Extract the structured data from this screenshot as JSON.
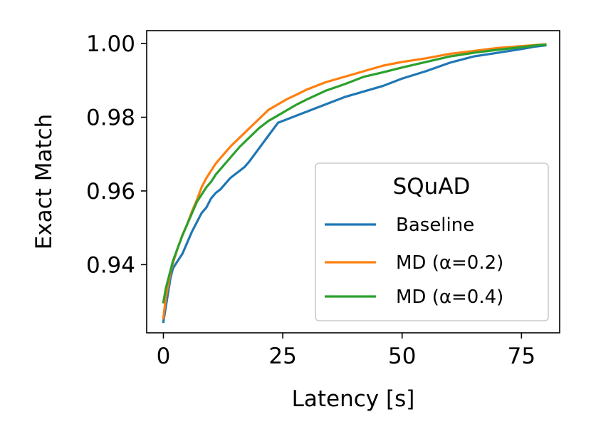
{
  "chart_data": {
    "type": "line",
    "xlabel": "Latency [s]",
    "ylabel": "Exact Match",
    "xlim": [
      -3.5,
      83
    ],
    "ylim": [
      0.9215,
      1.0035
    ],
    "xticks": [
      0,
      25,
      50,
      75
    ],
    "yticks": [
      0.94,
      0.96,
      0.98,
      1.0
    ],
    "xtick_labels": [
      "0",
      "25",
      "50",
      "75"
    ],
    "ytick_labels": [
      "0.94",
      "0.96",
      "0.98",
      "1.00"
    ],
    "grid": false,
    "legend": {
      "title": "SQuAD",
      "placement": "lower-right"
    },
    "series": [
      {
        "name": "Baseline",
        "color": "#1f77b4",
        "x": [
          0,
          0.5,
          1,
          1.5,
          2,
          3,
          4,
          5,
          6,
          7,
          8,
          9,
          10,
          11,
          12,
          13,
          14,
          15,
          16,
          17,
          18,
          20,
          22,
          24,
          26,
          28,
          30,
          34,
          38,
          42,
          46,
          50,
          55,
          60,
          65,
          70,
          75,
          78,
          80
        ],
        "y": [
          0.9245,
          0.9285,
          0.9325,
          0.9365,
          0.939,
          0.941,
          0.943,
          0.946,
          0.949,
          0.9515,
          0.954,
          0.9555,
          0.958,
          0.9595,
          0.9605,
          0.962,
          0.9635,
          0.9645,
          0.9655,
          0.9665,
          0.968,
          0.9715,
          0.975,
          0.9785,
          0.9795,
          0.9805,
          0.9815,
          0.9835,
          0.9855,
          0.987,
          0.9885,
          0.9905,
          0.9925,
          0.9948,
          0.9965,
          0.9975,
          0.9985,
          0.9992,
          0.9995
        ]
      },
      {
        "name": "MD (α=0.2)",
        "color": "#ff7f0e",
        "x": [
          0,
          0.5,
          1,
          1.5,
          2,
          3,
          4,
          5,
          6,
          7,
          8,
          9,
          10,
          11,
          12,
          14,
          16,
          18,
          20,
          22,
          24,
          26,
          28,
          30,
          34,
          38,
          42,
          46,
          50,
          55,
          60,
          65,
          70,
          75,
          78,
          80
        ],
        "y": [
          0.9255,
          0.931,
          0.9345,
          0.938,
          0.9405,
          0.9445,
          0.948,
          0.951,
          0.9545,
          0.9575,
          0.961,
          0.9635,
          0.9655,
          0.9675,
          0.969,
          0.972,
          0.9745,
          0.977,
          0.9795,
          0.982,
          0.9835,
          0.985,
          0.9862,
          0.9875,
          0.9895,
          0.991,
          0.9925,
          0.994,
          0.995,
          0.996,
          0.9972,
          0.998,
          0.9988,
          0.9993,
          0.9996,
          0.9998
        ]
      },
      {
        "name": "MD (α=0.4)",
        "color": "#2ca02c",
        "x": [
          0,
          0.5,
          1,
          1.5,
          2,
          3,
          4,
          5,
          6,
          7,
          8,
          9,
          10,
          11,
          12,
          14,
          16,
          18,
          20,
          22,
          24,
          26,
          28,
          30,
          34,
          38,
          42,
          46,
          50,
          55,
          60,
          65,
          70,
          75,
          78,
          80
        ],
        "y": [
          0.9298,
          0.9335,
          0.936,
          0.9385,
          0.941,
          0.9445,
          0.948,
          0.951,
          0.954,
          0.957,
          0.959,
          0.961,
          0.9625,
          0.9645,
          0.966,
          0.969,
          0.972,
          0.9745,
          0.977,
          0.979,
          0.9805,
          0.982,
          0.9835,
          0.9848,
          0.9872,
          0.989,
          0.991,
          0.9922,
          0.9935,
          0.995,
          0.9965,
          0.9975,
          0.9983,
          0.999,
          0.9995,
          0.9997
        ]
      }
    ]
  }
}
